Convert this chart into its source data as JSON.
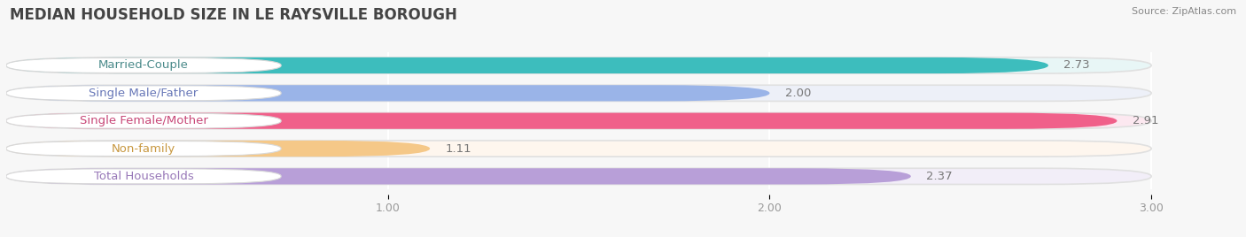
{
  "title": "MEDIAN HOUSEHOLD SIZE IN LE RAYSVILLE BOROUGH",
  "source": "Source: ZipAtlas.com",
  "categories": [
    "Married-Couple",
    "Single Male/Father",
    "Single Female/Mother",
    "Non-family",
    "Total Households"
  ],
  "values": [
    2.73,
    2.0,
    2.91,
    1.11,
    2.37
  ],
  "bar_colors": [
    "#3dbdbd",
    "#9ab4e8",
    "#f0608a",
    "#f5c888",
    "#b89fd8"
  ],
  "bar_bg_colors": [
    "#e8f6f6",
    "#edf0f8",
    "#fce8f0",
    "#fef6ee",
    "#f2eef8"
  ],
  "label_bg_color": "#ffffff",
  "label_text_colors": [
    "#4a8a8a",
    "#6878b8",
    "#c84878",
    "#c89840",
    "#9878b8"
  ],
  "xlim": [
    0,
    3.15
  ],
  "xaxis_max": 3.0,
  "xticks": [
    1.0,
    2.0,
    3.0
  ],
  "label_fontsize": 9.5,
  "value_fontsize": 9.5,
  "title_fontsize": 12,
  "background_color": "#f7f7f7"
}
